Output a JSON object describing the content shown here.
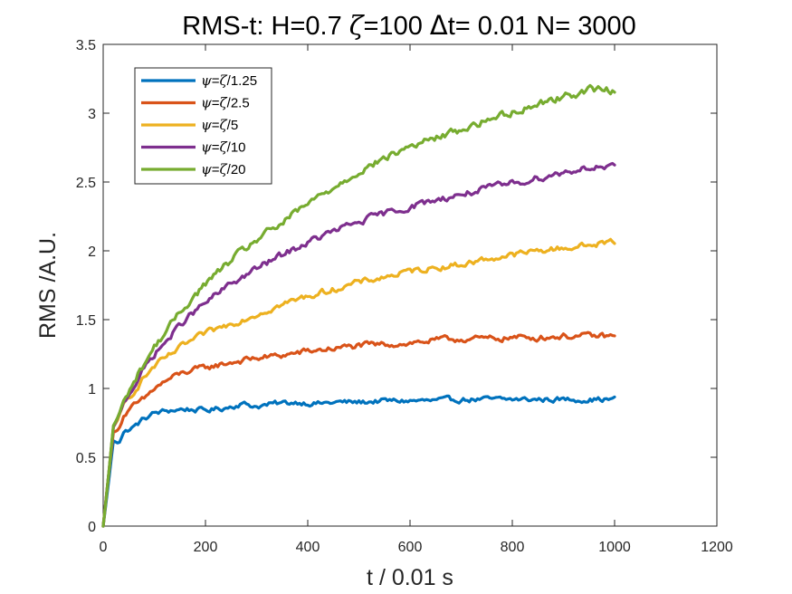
{
  "chart_data": {
    "type": "line",
    "title_parts": {
      "prefix": "RMS-t:  H=0.7 ",
      "zeta": "ζ",
      "zeta_val": "=100 ",
      "delta": "Δ",
      "rest": "t= 0.01 N= 3000"
    },
    "xlabel": "t / 0.01 s",
    "ylabel": "RMS /A.U.",
    "xlim": [
      0,
      1200
    ],
    "ylim": [
      0,
      3.5
    ],
    "xticks": [
      0,
      200,
      400,
      600,
      800,
      1000,
      1200
    ],
    "yticks": [
      0,
      0.5,
      1,
      1.5,
      2,
      2.5,
      3,
      3.5
    ],
    "xtick_labels": [
      "0",
      "200",
      "400",
      "600",
      "800",
      "1000",
      "1200"
    ],
    "ytick_labels": [
      "0",
      "0.5",
      "1",
      "1.5",
      "2",
      "2.5",
      "3",
      "3.5"
    ],
    "grid": false,
    "legend_position": "top-left",
    "series": [
      {
        "name": "ψ=ζ/1.25",
        "legend": {
          "psi": "ψ",
          "eq": "=",
          "zeta": "ζ",
          "div": "/1.25"
        },
        "color": "#0072BD",
        "points": [
          [
            0,
            0
          ],
          [
            10,
            0.3
          ],
          [
            20,
            0.62
          ],
          [
            30,
            0.6
          ],
          [
            40,
            0.68
          ],
          [
            60,
            0.72
          ],
          [
            80,
            0.78
          ],
          [
            100,
            0.82
          ],
          [
            130,
            0.84
          ],
          [
            160,
            0.85
          ],
          [
            200,
            0.84
          ],
          [
            240,
            0.86
          ],
          [
            270,
            0.89
          ],
          [
            300,
            0.87
          ],
          [
            340,
            0.89
          ],
          [
            380,
            0.9
          ],
          [
            420,
            0.89
          ],
          [
            460,
            0.9
          ],
          [
            500,
            0.9
          ],
          [
            550,
            0.91
          ],
          [
            600,
            0.91
          ],
          [
            650,
            0.91
          ],
          [
            700,
            0.92
          ],
          [
            750,
            0.92
          ],
          [
            800,
            0.92
          ],
          [
            850,
            0.92
          ],
          [
            900,
            0.92
          ],
          [
            950,
            0.92
          ],
          [
            1000,
            0.92
          ]
        ]
      },
      {
        "name": "ψ=ζ/2.5",
        "legend": {
          "psi": "ψ",
          "eq": "=",
          "zeta": "ζ",
          "div": "/2.5"
        },
        "color": "#D95319",
        "points": [
          [
            0,
            0
          ],
          [
            10,
            0.35
          ],
          [
            20,
            0.68
          ],
          [
            30,
            0.7
          ],
          [
            40,
            0.8
          ],
          [
            60,
            0.87
          ],
          [
            80,
            0.92
          ],
          [
            100,
            1.0
          ],
          [
            130,
            1.07
          ],
          [
            160,
            1.12
          ],
          [
            200,
            1.15
          ],
          [
            250,
            1.19
          ],
          [
            300,
            1.22
          ],
          [
            350,
            1.24
          ],
          [
            400,
            1.27
          ],
          [
            450,
            1.29
          ],
          [
            500,
            1.31
          ],
          [
            550,
            1.32
          ],
          [
            600,
            1.33
          ],
          [
            650,
            1.35
          ],
          [
            700,
            1.36
          ],
          [
            750,
            1.36
          ],
          [
            800,
            1.37
          ],
          [
            850,
            1.37
          ],
          [
            900,
            1.38
          ],
          [
            950,
            1.38
          ],
          [
            1000,
            1.38
          ]
        ]
      },
      {
        "name": "ψ=ζ/5",
        "legend": {
          "psi": "ψ",
          "eq": "=",
          "zeta": "ζ",
          "div": "/5"
        },
        "color": "#EDB120",
        "points": [
          [
            0,
            0
          ],
          [
            10,
            0.35
          ],
          [
            20,
            0.72
          ],
          [
            30,
            0.78
          ],
          [
            40,
            0.88
          ],
          [
            60,
            0.98
          ],
          [
            80,
            1.08
          ],
          [
            100,
            1.16
          ],
          [
            130,
            1.24
          ],
          [
            160,
            1.32
          ],
          [
            200,
            1.4
          ],
          [
            250,
            1.47
          ],
          [
            300,
            1.54
          ],
          [
            350,
            1.61
          ],
          [
            400,
            1.67
          ],
          [
            450,
            1.72
          ],
          [
            500,
            1.77
          ],
          [
            550,
            1.81
          ],
          [
            600,
            1.85
          ],
          [
            650,
            1.88
          ],
          [
            700,
            1.9
          ],
          [
            750,
            1.94
          ],
          [
            800,
            1.97
          ],
          [
            850,
            2.0
          ],
          [
            900,
            2.02
          ],
          [
            950,
            2.04
          ],
          [
            1000,
            2.07
          ]
        ]
      },
      {
        "name": "ψ=ζ/10",
        "legend": {
          "psi": "ψ",
          "eq": "=",
          "zeta": "ζ",
          "div": "/10"
        },
        "color": "#7E2F8E",
        "points": [
          [
            0,
            0
          ],
          [
            10,
            0.35
          ],
          [
            20,
            0.72
          ],
          [
            30,
            0.8
          ],
          [
            40,
            0.9
          ],
          [
            60,
            1.02
          ],
          [
            80,
            1.14
          ],
          [
            100,
            1.25
          ],
          [
            130,
            1.37
          ],
          [
            160,
            1.5
          ],
          [
            200,
            1.62
          ],
          [
            250,
            1.76
          ],
          [
            300,
            1.87
          ],
          [
            350,
            1.97
          ],
          [
            400,
            2.06
          ],
          [
            450,
            2.14
          ],
          [
            500,
            2.21
          ],
          [
            550,
            2.27
          ],
          [
            600,
            2.32
          ],
          [
            650,
            2.37
          ],
          [
            700,
            2.41
          ],
          [
            750,
            2.45
          ],
          [
            800,
            2.49
          ],
          [
            850,
            2.53
          ],
          [
            900,
            2.57
          ],
          [
            950,
            2.61
          ],
          [
            1000,
            2.6
          ]
        ]
      },
      {
        "name": "ψ=ζ/20",
        "legend": {
          "psi": "ψ",
          "eq": "=",
          "zeta": "ζ",
          "div": "/20"
        },
        "color": "#77AC30",
        "points": [
          [
            0,
            0
          ],
          [
            10,
            0.35
          ],
          [
            20,
            0.73
          ],
          [
            30,
            0.8
          ],
          [
            40,
            0.9
          ],
          [
            60,
            1.05
          ],
          [
            80,
            1.18
          ],
          [
            100,
            1.3
          ],
          [
            130,
            1.45
          ],
          [
            160,
            1.6
          ],
          [
            200,
            1.76
          ],
          [
            250,
            1.93
          ],
          [
            300,
            2.08
          ],
          [
            350,
            2.2
          ],
          [
            400,
            2.34
          ],
          [
            450,
            2.46
          ],
          [
            500,
            2.58
          ],
          [
            550,
            2.67
          ],
          [
            600,
            2.76
          ],
          [
            650,
            2.82
          ],
          [
            700,
            2.88
          ],
          [
            750,
            2.95
          ],
          [
            800,
            3.01
          ],
          [
            850,
            3.07
          ],
          [
            900,
            3.12
          ],
          [
            950,
            3.17
          ],
          [
            1000,
            3.17
          ]
        ]
      }
    ]
  }
}
